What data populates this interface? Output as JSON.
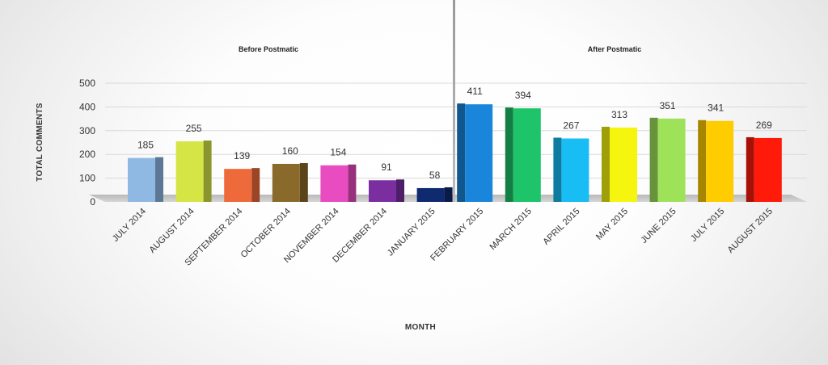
{
  "chart_data": {
    "type": "bar",
    "title": "",
    "xlabel": "MONTH",
    "ylabel": "TOTAL COMMENTS",
    "ylim": [
      0,
      500
    ],
    "yticks": [
      0,
      100,
      200,
      300,
      400,
      500
    ],
    "grid": true,
    "legend": "none",
    "annotations": [
      "Before Postmatic",
      "After Postmatic"
    ],
    "categories": [
      "JULY 2014",
      "AUGUST 2014",
      "SEPTEMBER 2014",
      "OCTOBER 2014",
      "NOVEMBER 2014",
      "DECEMBER 2014",
      "JANUARY 2015",
      "FEBRUARY 2015",
      "MARCH 2015",
      "APRIL 2015",
      "MAY 2015",
      "JUNE 2015",
      "JULY 2015",
      "AUGUST 2015"
    ],
    "values": [
      185,
      255,
      139,
      160,
      154,
      91,
      58,
      411,
      394,
      267,
      313,
      351,
      341,
      269
    ],
    "colors": [
      "#8fb9e3",
      "#d5e545",
      "#ef6a3a",
      "#8a6a2a",
      "#e84cc0",
      "#7a2ea0",
      "#0f2a6e",
      "#1a86db",
      "#1ec46a",
      "#17bdf3",
      "#f5f510",
      "#9ee25a",
      "#ffcc00",
      "#ff1a0a"
    ]
  }
}
